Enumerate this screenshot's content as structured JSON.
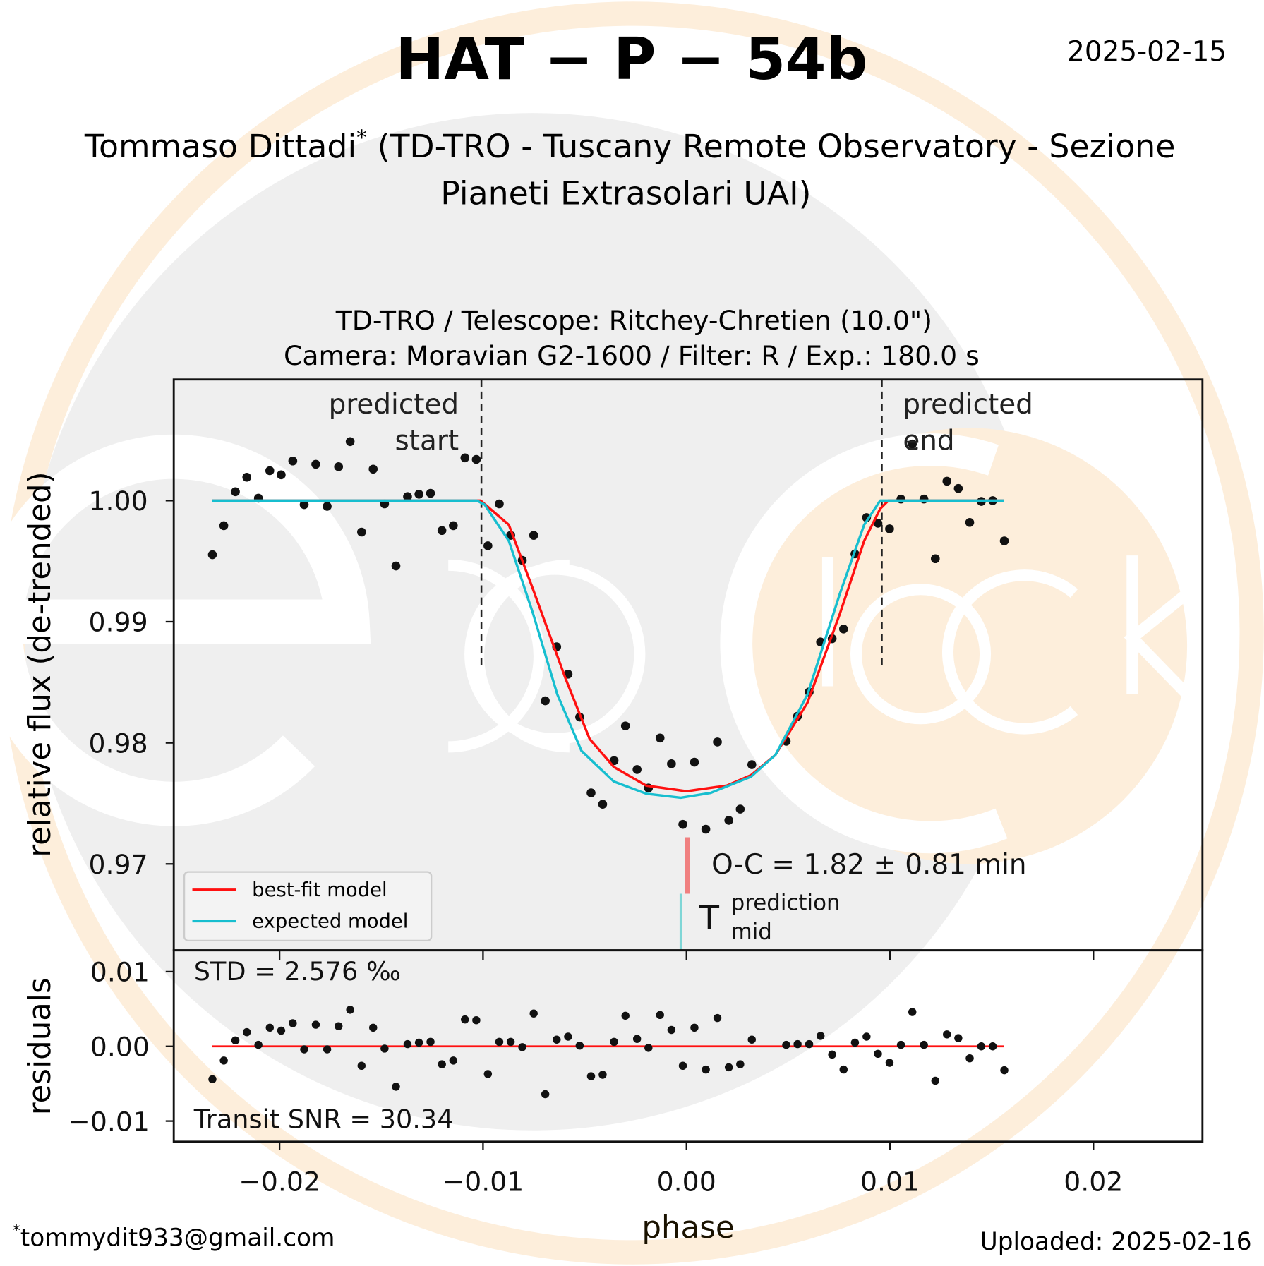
{
  "header": {
    "title": "HAT − P − 54b",
    "date": "2025-02-15",
    "author": "Tommaso Dittadi",
    "author_mark": "*",
    "affiliation_lines": [
      "(TD-TRO - Tuscany Remote Observatory - Sezione",
      "Pianeti Extrasolari UAI)"
    ]
  },
  "footer": {
    "email_mark": "*",
    "email": "tommydit933@gmail.com",
    "uploaded": "Uploaded: 2025-02-16"
  },
  "logo": {
    "text": "exoclock"
  },
  "colors": {
    "best_fit": "#ff1010",
    "expected": "#17becf",
    "points": "#111111",
    "oc_bar": "#f08080",
    "tmid_bar": "#7fd6d6",
    "logo_peach": "#fdeedb",
    "logo_grey": "#efefef"
  },
  "chart_data": [
    {
      "type": "scatter",
      "title_lines": [
        "TD-TRO / Telescope: Ritchey-Chretien (10.0\")",
        "Camera: Moravian G2-1600 / Filter: R / Exp.: 180.0 s"
      ],
      "ylabel": "relative flux (de-trended)",
      "xlim": [
        -0.0252,
        0.02536
      ],
      "ylim": [
        0.96287,
        1.01
      ],
      "yticks": [
        1.0,
        0.99,
        0.98,
        0.97
      ],
      "ytick_labels": [
        "1.00",
        "0.99",
        "0.98",
        "0.97"
      ],
      "grid": false,
      "legend": {
        "placement": "lower-left",
        "entries": [
          "best-fit model",
          "expected model"
        ]
      },
      "x": [
        -0.0233,
        -0.02274,
        -0.02217,
        -0.02161,
        -0.02104,
        -0.02048,
        -0.01992,
        -0.01935,
        -0.01879,
        -0.01822,
        -0.01766,
        -0.0171,
        -0.01653,
        -0.01597,
        -0.0154,
        -0.01484,
        -0.01428,
        -0.01371,
        -0.01315,
        -0.01258,
        -0.01202,
        -0.01146,
        -0.01089,
        -0.01033,
        -0.00976,
        -0.0092,
        -0.00864,
        -0.00807,
        -0.00751,
        -0.00694,
        -0.00638,
        -0.00582,
        -0.00525,
        -0.00469,
        -0.00412,
        -0.00356,
        -0.003,
        -0.00243,
        -0.00187,
        -0.0013,
        -0.00074,
        -0.00018,
        0.00039,
        0.00095,
        0.00152,
        0.00208,
        0.00264,
        0.00321,
        0.0049,
        0.00546,
        0.00603,
        0.00659,
        0.00716,
        0.00772,
        0.00828,
        0.00885,
        0.00941,
        0.00998,
        0.01054,
        0.0111,
        0.01167,
        0.01223,
        0.0128,
        0.01336,
        0.01392,
        0.01449,
        0.01505,
        0.01562
      ],
      "flux": [
        0.99553,
        0.99793,
        1.00073,
        1.00193,
        1.0002,
        1.00247,
        1.00213,
        1.00327,
        0.99967,
        1.003,
        0.99953,
        1.0028,
        1.00487,
        0.9974,
        1.0026,
        0.99973,
        0.9946,
        1.00033,
        1.00053,
        1.0006,
        0.99753,
        0.99793,
        1.00353,
        1.0034,
        0.99627,
        0.99973,
        0.99713,
        0.99507,
        0.99713,
        0.98347,
        0.98793,
        0.98567,
        0.98213,
        0.97587,
        0.97493,
        0.97853,
        0.9814,
        0.9778,
        0.97627,
        0.9804,
        0.97827,
        0.97327,
        0.9784,
        0.97287,
        0.98007,
        0.9736,
        0.97453,
        0.9782,
        0.98013,
        0.9822,
        0.9842,
        0.98833,
        0.9886,
        0.9894,
        0.9956,
        0.9986,
        0.99813,
        0.99767,
        1.00013,
        1.00467,
        1.00013,
        0.9952,
        1.0016,
        1.001,
        0.9982,
        0.99993,
        1.0,
        0.99667
      ],
      "series": [
        {
          "name": "best-fit model",
          "x": [
            -0.0233,
            -0.01012,
            -0.00873,
            -0.00754,
            -0.00595,
            -0.00476,
            -0.00357,
            -0.00198,
            0.0,
            0.00198,
            0.00317,
            0.00437,
            0.00595,
            0.00754,
            0.00873,
            0.00952,
            0.00992,
            0.0156
          ],
          "y": [
            1.0,
            1.0,
            0.998,
            0.99267,
            0.98533,
            0.98033,
            0.978,
            0.97647,
            0.976,
            0.97647,
            0.97733,
            0.979,
            0.98333,
            0.99067,
            0.99667,
            0.99933,
            1.0,
            1.0
          ]
        },
        {
          "name": "expected model",
          "x": [
            -0.0233,
            -0.0103,
            -0.00992,
            -0.00873,
            -0.00754,
            -0.00635,
            -0.00516,
            -0.00357,
            -0.00198,
            -0.00028,
            0.00119,
            0.00317,
            0.00437,
            0.00595,
            0.00754,
            0.00873,
            0.00952,
            0.0156
          ],
          "y": [
            1.0,
            1.0,
            0.99967,
            0.99667,
            0.99067,
            0.984,
            0.97933,
            0.9768,
            0.9758,
            0.97547,
            0.97587,
            0.9772,
            0.979,
            0.984,
            0.99233,
            0.998,
            1.0,
            1.0
          ]
        }
      ],
      "predicted_start": -0.01008,
      "predicted_end": 0.0096,
      "predicted_start_label": [
        "predicted",
        "start"
      ],
      "predicted_end_label": [
        "predicted",
        "end"
      ],
      "best_fit_mid": 5e-05,
      "predicted_mid": -0.00028,
      "oc_label": "O-C = 1.82 ± 0.81 min",
      "tmid_label": {
        "main": "T",
        "sup": "prediction",
        "sub": "mid"
      }
    },
    {
      "type": "scatter",
      "xlabel": "phase",
      "ylabel": "residuals",
      "xlim": [
        -0.0252,
        0.02536
      ],
      "ylim": [
        -0.01276,
        0.01286
      ],
      "xticks": [
        -0.02,
        -0.01,
        0.0,
        0.01,
        0.02
      ],
      "xtick_labels": [
        "−0.02",
        "−0.01",
        "0.00",
        "0.01",
        "0.02"
      ],
      "yticks": [
        0.01,
        0.0,
        -0.01
      ],
      "ytick_labels": [
        "0.01",
        "0.00",
        "−0.01"
      ],
      "residuals": [
        -0.0044,
        -0.0019,
        0.0008,
        0.0019,
        0.0002,
        0.0025,
        0.0021,
        0.0031,
        -0.0004,
        0.0029,
        -0.0004,
        0.0027,
        0.0049,
        -0.0026,
        0.0025,
        -0.0003,
        -0.0054,
        0.0003,
        0.0005,
        0.0006,
        -0.0024,
        -0.0019,
        0.0036,
        0.0035,
        -0.0037,
        0.0006,
        0.0006,
        -0.0001,
        0.0044,
        -0.0064,
        0.0009,
        0.0013,
        0.0001,
        -0.004,
        -0.0038,
        0.0006,
        0.0041,
        0.001,
        -0.0002,
        0.0042,
        0.0022,
        -0.0026,
        0.0025,
        -0.0031,
        0.0038,
        -0.0028,
        -0.0024,
        0.0009,
        0.0002,
        0.0003,
        0.0003,
        0.0014,
        -0.0011,
        -0.0031,
        0.0005,
        0.0013,
        -0.001,
        -0.0022,
        0.0002,
        0.0046,
        0.0002,
        -0.0046,
        0.0016,
        0.0011,
        -0.0016,
        0.0,
        0.0,
        -0.0032
      ],
      "std_label": "STD = 2.576 ‰",
      "snr_label": "Transit SNR = 30.34"
    }
  ]
}
